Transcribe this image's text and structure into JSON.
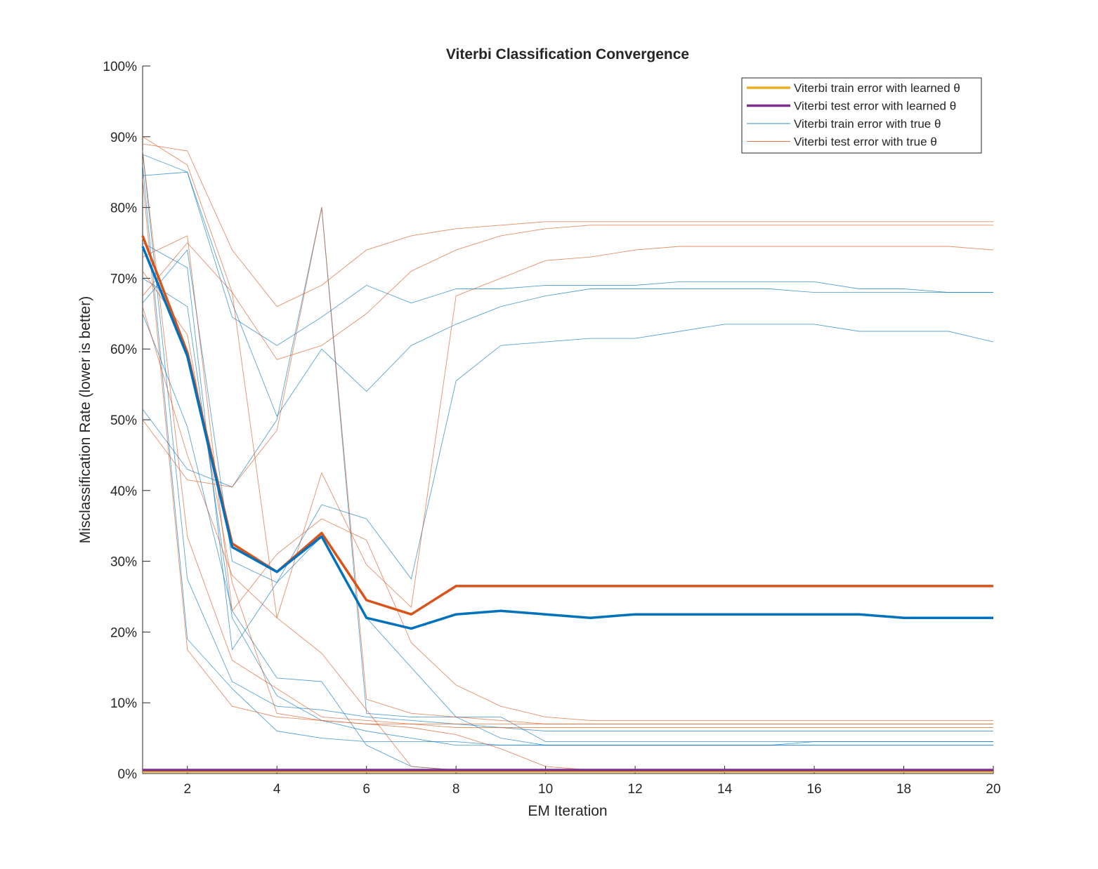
{
  "chart_data": {
    "type": "line",
    "title": "Viterbi Classification Convergence",
    "xlabel": "EM Iteration",
    "ylabel": "Misclassification Rate (lower is better)",
    "xlim": [
      1,
      20
    ],
    "ylim": [
      0,
      100
    ],
    "x_ticks": [
      2,
      4,
      6,
      8,
      10,
      12,
      14,
      16,
      18,
      20
    ],
    "y_ticks": [
      0,
      10,
      20,
      30,
      40,
      50,
      60,
      70,
      80,
      90,
      100
    ],
    "y_tick_labels": [
      "0%",
      "10%",
      "20%",
      "30%",
      "40%",
      "50%",
      "60%",
      "70%",
      "80%",
      "90%",
      "100%"
    ],
    "grid": false,
    "legend_position": "top-right",
    "legend": [
      {
        "label": "Viterbi train error with learned θ",
        "color": "#EDB120",
        "width": "thick"
      },
      {
        "label": "Viterbi test error with learned θ",
        "color": "#7E2F8E",
        "width": "thick"
      },
      {
        "label": "Viterbi train error with true θ",
        "color": "#0072BD",
        "width": "thin"
      },
      {
        "label": "Viterbi test error with true θ",
        "color": "#D95319",
        "width": "thin"
      }
    ],
    "x": [
      1,
      2,
      3,
      4,
      5,
      6,
      7,
      8,
      9,
      10,
      11,
      12,
      13,
      14,
      15,
      16,
      17,
      18,
      19,
      20
    ],
    "series": [
      {
        "group": "thin-train",
        "color": "#0072BD",
        "values": [
          87.5,
          85,
          64.5,
          60.5,
          64.5,
          69,
          66.5,
          68.5,
          68.5,
          69,
          69,
          69,
          69.5,
          69.5,
          69.5,
          69.5,
          68.5,
          68.5,
          68,
          68
        ]
      },
      {
        "group": "thin-train",
        "color": "#0072BD",
        "values": [
          84.5,
          85,
          66.5,
          50.5,
          60,
          54,
          60.5,
          63.5,
          66,
          67.5,
          68.5,
          68.5,
          68.5,
          68.5,
          68.5,
          68,
          68,
          68,
          68,
          68
        ]
      },
      {
        "group": "thin-train",
        "color": "#0072BD",
        "values": [
          66.5,
          74,
          30,
          27,
          38,
          36,
          27.5,
          55.5,
          60.5,
          61,
          61.5,
          61.5,
          62.5,
          63.5,
          63.5,
          63.5,
          62.5,
          62.5,
          62.5,
          61
        ]
      },
      {
        "group": "thin-train",
        "color": "#0072BD",
        "values": [
          51.5,
          43,
          40.5,
          50,
          80,
          8.5,
          8,
          8,
          8,
          4.5,
          4.5,
          4.5,
          4.5,
          4.5,
          4.5,
          4.5,
          4.5,
          4.5,
          4.5,
          4.5
        ]
      },
      {
        "group": "thin-train",
        "color": "#0072BD",
        "values": [
          75,
          71.5,
          17.5,
          27,
          33.5,
          22,
          15,
          8,
          5,
          4,
          4,
          4,
          4,
          4,
          4,
          4.5,
          4.5,
          4.5,
          4.5,
          4.5
        ]
      },
      {
        "group": "thin-train",
        "color": "#0072BD",
        "values": [
          65,
          49,
          23,
          13.5,
          13,
          4,
          1,
          0.5,
          0.5,
          0.5,
          0.5,
          0.5,
          0.5,
          0.5,
          0.5,
          0.5,
          0.5,
          0.5,
          0.5,
          0.5
        ]
      },
      {
        "group": "thin-train",
        "color": "#0072BD",
        "values": [
          88,
          27.5,
          13,
          9.5,
          9,
          8,
          7.5,
          7,
          6.5,
          6,
          6,
          6,
          6,
          6,
          6,
          6,
          6,
          6,
          6,
          6
        ]
      },
      {
        "group": "thin-train",
        "color": "#0072BD",
        "values": [
          86,
          19,
          12,
          6,
          5,
          4.5,
          4.5,
          4.5,
          4,
          4,
          4,
          4,
          4,
          4,
          4,
          4,
          4,
          4,
          4,
          4
        ]
      },
      {
        "group": "thin-train",
        "color": "#0072BD",
        "values": [
          70,
          66,
          22,
          11,
          7.5,
          6,
          5,
          4,
          4,
          4,
          4,
          4,
          4,
          4,
          4,
          4,
          4,
          4,
          4,
          4
        ]
      },
      {
        "group": "thin-test",
        "color": "#D95319",
        "values": [
          89,
          88,
          74,
          66,
          69,
          74,
          76,
          77,
          77.5,
          78,
          78,
          78,
          78,
          78,
          78,
          78,
          78,
          78,
          78,
          78
        ]
      },
      {
        "group": "thin-test",
        "color": "#D95319",
        "values": [
          90,
          86,
          68,
          58.5,
          60.5,
          65,
          71,
          74,
          76,
          77,
          77.5,
          77.5,
          77.5,
          77.5,
          77.5,
          77.5,
          77.5,
          77.5,
          77.5,
          77.5
        ]
      },
      {
        "group": "thin-test",
        "color": "#D95319",
        "values": [
          67.5,
          75,
          68,
          22,
          42.5,
          29.5,
          23.5,
          67.5,
          70,
          72.5,
          73,
          74,
          74.5,
          74.5,
          74.5,
          74.5,
          74.5,
          74.5,
          74.5,
          74
        ]
      },
      {
        "group": "thin-test",
        "color": "#D95319",
        "values": [
          50,
          41.5,
          40.5,
          48.5,
          80,
          10.5,
          8.5,
          8,
          7.5,
          7,
          7,
          7,
          7,
          7,
          7,
          7,
          7,
          7,
          7,
          7
        ]
      },
      {
        "group": "thin-test",
        "color": "#D95319",
        "values": [
          73,
          76,
          23,
          31,
          36,
          33,
          18.5,
          12.5,
          9.5,
          8,
          7.5,
          7.5,
          7.5,
          7.5,
          7.5,
          7.5,
          7.5,
          7.5,
          7.5,
          7.5
        ]
      },
      {
        "group": "thin-test",
        "color": "#D95319",
        "values": [
          66,
          45,
          28,
          22,
          17,
          9,
          1,
          0.5,
          0.5,
          0.5,
          0.5,
          0.5,
          0.5,
          0.5,
          0.5,
          0.5,
          0.5,
          0.5,
          0.5,
          0.5
        ]
      },
      {
        "group": "thin-test",
        "color": "#D95319",
        "values": [
          88,
          33.5,
          16,
          12,
          8,
          7.5,
          7,
          6.5,
          6.5,
          6.5,
          6.5,
          6.5,
          6.5,
          6.5,
          6.5,
          6.5,
          6.5,
          6.5,
          6.5,
          6.5
        ]
      },
      {
        "group": "thin-test",
        "color": "#D95319",
        "values": [
          84,
          17.5,
          9.5,
          8,
          7.5,
          7,
          6.5,
          5.5,
          3.5,
          1,
          0.5,
          0.5,
          0.5,
          0.5,
          0.5,
          0.5,
          0.5,
          0.5,
          0.5,
          0.5
        ]
      },
      {
        "group": "thin-test",
        "color": "#D95319",
        "values": [
          71,
          62,
          27,
          8.5,
          7.5,
          7,
          7,
          7,
          7,
          7,
          7,
          7,
          7,
          7,
          7,
          7,
          7,
          7,
          7,
          7
        ]
      },
      {
        "group": "learned-train",
        "color": "#EDB120",
        "values": [
          0.3,
          0.3,
          0.3,
          0.3,
          0.3,
          0.3,
          0.3,
          0.3,
          0.3,
          0.3,
          0.3,
          0.3,
          0.3,
          0.3,
          0.3,
          0.3,
          0.3,
          0.3,
          0.3,
          0.3
        ]
      },
      {
        "group": "learned-test",
        "color": "#7E2F8E",
        "values": [
          0.5,
          0.5,
          0.5,
          0.5,
          0.5,
          0.5,
          0.5,
          0.5,
          0.5,
          0.5,
          0.5,
          0.5,
          0.5,
          0.5,
          0.5,
          0.5,
          0.5,
          0.5,
          0.5,
          0.5
        ]
      },
      {
        "group": "mean-test",
        "color": "#D95319",
        "values": [
          76,
          59.5,
          32.5,
          28.5,
          34,
          24.5,
          22.5,
          26.5,
          26.5,
          26.5,
          26.5,
          26.5,
          26.5,
          26.5,
          26.5,
          26.5,
          26.5,
          26.5,
          26.5,
          26.5
        ]
      },
      {
        "group": "mean-train",
        "color": "#0072BD",
        "values": [
          74.5,
          59,
          32,
          28.5,
          33.5,
          22,
          20.5,
          22.5,
          23,
          22.5,
          22,
          22.5,
          22.5,
          22.5,
          22.5,
          22.5,
          22.5,
          22,
          22,
          22
        ]
      }
    ]
  }
}
